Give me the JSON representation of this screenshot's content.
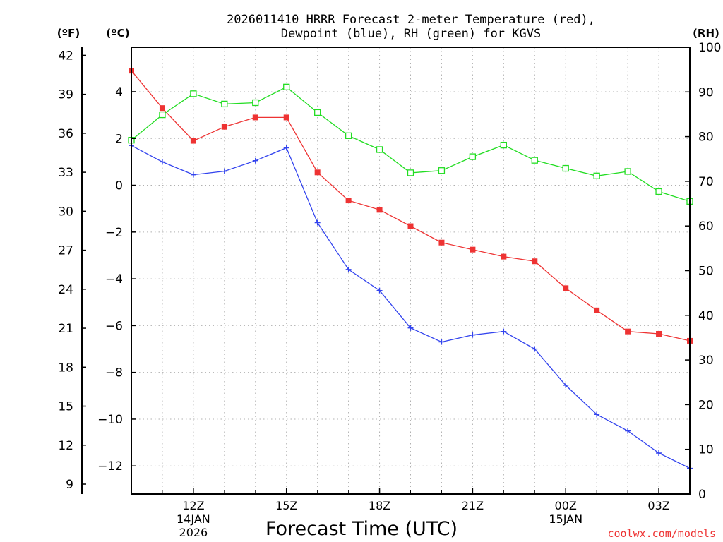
{
  "chart_data": {
    "type": "line",
    "title_line1": "2026011410 HRRR Forecast 2-meter Temperature (red),",
    "title_line2": "Dewpoint (blue), RH (green) for KGVS",
    "xlabel": "Forecast Time (UTC)",
    "unit_f": "(ºF)",
    "unit_c": "(ºC)",
    "unit_rh": "(RH)",
    "credit": "coolwx.com/models",
    "x_hours": [
      10,
      11,
      12,
      13,
      14,
      15,
      16,
      17,
      18,
      19,
      20,
      21,
      22,
      23,
      24,
      25,
      26,
      27,
      28
    ],
    "xlim": [
      10,
      28
    ],
    "ylim_c": [
      -13.2,
      5.9
    ],
    "ylim_rh": [
      0,
      100
    ],
    "x_ticks": [
      {
        "hour": 12,
        "label": "12Z",
        "sub1": "14JAN",
        "sub2": "2026"
      },
      {
        "hour": 15,
        "label": "15Z",
        "sub1": "",
        "sub2": ""
      },
      {
        "hour": 18,
        "label": "18Z",
        "sub1": "",
        "sub2": ""
      },
      {
        "hour": 21,
        "label": "21Z",
        "sub1": "",
        "sub2": ""
      },
      {
        "hour": 24,
        "label": "00Z",
        "sub1": "15JAN",
        "sub2": ""
      },
      {
        "hour": 27,
        "label": "03Z",
        "sub1": "",
        "sub2": ""
      }
    ],
    "x_grid_hours": [
      11,
      12,
      13,
      14,
      15,
      16,
      17,
      18,
      19,
      20,
      21,
      22,
      23,
      24,
      25,
      26,
      27
    ],
    "y_ticks_c": [
      "4",
      "2",
      "0",
      "−2",
      "−4",
      "−6",
      "−8",
      "−10",
      "−12"
    ],
    "y_ticks_c_values": [
      4,
      2,
      0,
      -2,
      -4,
      -6,
      -8,
      -10,
      -12
    ],
    "y_ticks_f": [
      "42",
      "39",
      "36",
      "33",
      "30",
      "27",
      "24",
      "21",
      "18",
      "15",
      "12",
      "9"
    ],
    "y_ticks_f_values": [
      42,
      39,
      36,
      33,
      30,
      27,
      24,
      21,
      18,
      15,
      12,
      9
    ],
    "y_ticks_rh": [
      "100",
      "90",
      "80",
      "70",
      "60",
      "50",
      "40",
      "30",
      "20",
      "10",
      "0"
    ],
    "y_ticks_rh_values": [
      100,
      90,
      80,
      70,
      60,
      50,
      40,
      30,
      20,
      10,
      0
    ],
    "series": [
      {
        "name": "Temperature",
        "unit": "C",
        "color": "#ee3333",
        "marker": "filled-square",
        "values": [
          4.9,
          3.3,
          1.9,
          2.5,
          2.9,
          2.9,
          0.55,
          -0.65,
          -1.05,
          -1.75,
          -2.45,
          -2.75,
          -3.05,
          -3.25,
          -4.4,
          -5.35,
          -6.25,
          -6.35,
          -6.65
        ]
      },
      {
        "name": "Dewpoint",
        "unit": "C",
        "color": "#3344ee",
        "marker": "plus",
        "values": [
          1.7,
          1.0,
          0.45,
          0.6,
          1.05,
          1.6,
          -1.6,
          -3.6,
          -4.5,
          -6.1,
          -6.7,
          -6.4,
          -6.25,
          -7.0,
          -8.55,
          -9.8,
          -10.5,
          -11.45,
          -12.1
        ]
      },
      {
        "name": "RH",
        "unit": "%",
        "color": "#22dd22",
        "marker": "open-square",
        "values": [
          79.2,
          84.9,
          89.6,
          87.3,
          87.6,
          91.1,
          85.4,
          80.2,
          77.1,
          71.9,
          72.4,
          75.5,
          78.1,
          74.7,
          72.9,
          71.2,
          72.2,
          67.7,
          65.5
        ]
      }
    ]
  }
}
